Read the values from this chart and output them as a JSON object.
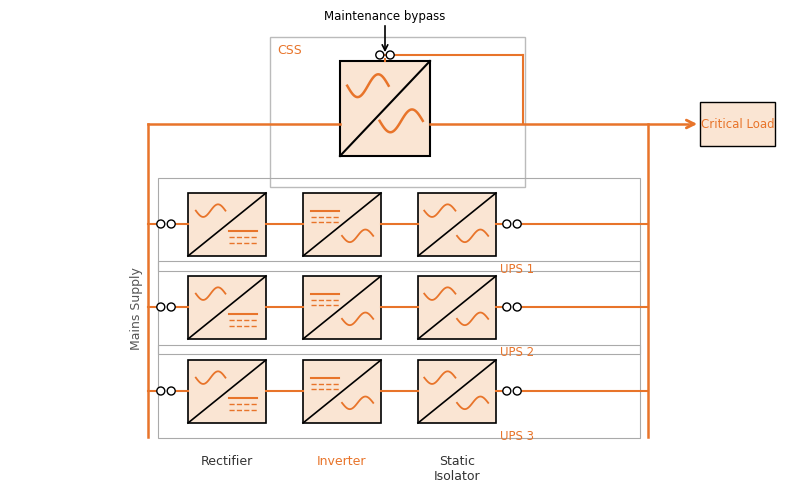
{
  "orange": "#E8742A",
  "orange_light": "#FAE5D3",
  "black": "#000000",
  "gray_border": "#AAAAAA",
  "white": "#FFFFFF",
  "bg": "#FFFFFF",
  "ups_labels": [
    "UPS 1",
    "UPS 2",
    "UPS 3"
  ],
  "component_labels": [
    "Rectifier",
    "Inverter",
    "Static\nIsolator"
  ],
  "mains_label": "Mains Supply",
  "critical_label": "Critical Load",
  "css_label": "CSS",
  "bypass_label": "Maintenance bypass",
  "figsize": [
    7.93,
    4.81
  ],
  "dpi": 100
}
